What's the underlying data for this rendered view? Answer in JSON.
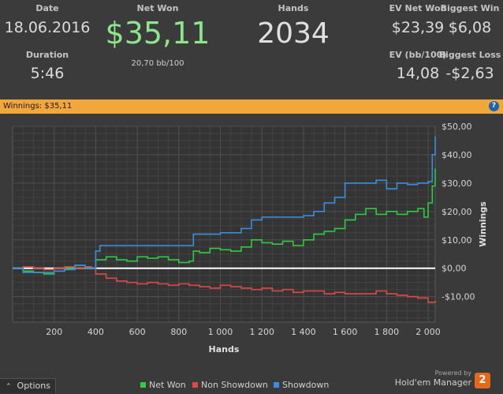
{
  "stats": {
    "date_label": "Date",
    "date_value": "18.06.2016",
    "duration_label": "Duration",
    "duration_value": "5:46",
    "net_won_label": "Net Won",
    "net_won_value": "$35,11",
    "bb100": "20,70 bb/100",
    "hands_label": "Hands",
    "hands_value": "2034",
    "ev_net_won_label": "EV Net Won",
    "ev_net_won_value": "$23,39",
    "biggest_win_label": "Biggest Win",
    "biggest_win_value": "$6,08",
    "ev_bb100_label": "EV (bb/100)",
    "ev_bb100_value": "14,08",
    "biggest_loss_label": "Biggest Loss",
    "biggest_loss_value": "-$2,63"
  },
  "titlebar": {
    "text": "Winnings: $35,11",
    "help_label": "?"
  },
  "bottom": {
    "options_label": "Options",
    "options_icon": "chevron-up-icon",
    "powered_by": "Powered by",
    "brand": "Hold'em Manager",
    "brand_badge": "2"
  },
  "colors": {
    "net_won": "#2ecc40",
    "non_showdown": "#e04848",
    "showdown": "#3a8ee0",
    "net_won_text": "#8ee68a",
    "zero_line": "#ffffff",
    "accent_bar": "#f2a73d"
  },
  "chart_data": {
    "type": "line",
    "xlabel": "Hands",
    "ylabel": "Winnings",
    "xlim": [
      0,
      2034
    ],
    "ylim": [
      -19,
      50
    ],
    "x_ticks": [
      200,
      400,
      600,
      800,
      1000,
      1200,
      1400,
      1600,
      1800,
      2000
    ],
    "x_tick_labels": [
      "200",
      "400",
      "600",
      "800",
      "1 000",
      "1 200",
      "1 400",
      "1 600",
      "1 800",
      "2 000"
    ],
    "y_ticks": [
      -10,
      0,
      10,
      20,
      30,
      40,
      50
    ],
    "y_tick_labels": [
      "-$10,00",
      "$0,00",
      "$10,00",
      "$20,00",
      "$30,00",
      "$40,00",
      "$50,00"
    ],
    "grid": true,
    "legend_position": "bottom-center",
    "series": [
      {
        "name": "Net Won",
        "color": "#2ecc40",
        "x": [
          0,
          50,
          100,
          150,
          200,
          250,
          300,
          350,
          380,
          400,
          450,
          500,
          550,
          600,
          650,
          700,
          750,
          800,
          850,
          870,
          900,
          950,
          1000,
          1050,
          1100,
          1150,
          1200,
          1250,
          1300,
          1350,
          1400,
          1450,
          1500,
          1550,
          1600,
          1650,
          1700,
          1750,
          1800,
          1850,
          1900,
          1950,
          1980,
          2000,
          2020,
          2034
        ],
        "values": [
          0,
          -1,
          -1.5,
          -2,
          -1,
          0,
          1,
          0.5,
          0,
          3,
          4,
          3,
          2.5,
          4,
          3.5,
          4,
          3,
          2,
          2.5,
          6,
          5.5,
          7,
          6.5,
          6,
          7.5,
          10,
          9,
          8.5,
          9.5,
          8,
          10,
          12,
          13,
          14,
          17,
          19,
          21,
          19,
          20,
          19,
          20,
          21,
          18,
          23,
          29,
          35.11
        ]
      },
      {
        "name": "Non Showdown",
        "color": "#e04848",
        "x": [
          0,
          50,
          100,
          150,
          200,
          250,
          300,
          350,
          380,
          400,
          450,
          500,
          550,
          600,
          650,
          700,
          750,
          800,
          850,
          900,
          950,
          1000,
          1050,
          1100,
          1150,
          1200,
          1250,
          1300,
          1350,
          1400,
          1450,
          1500,
          1550,
          1600,
          1650,
          1700,
          1750,
          1800,
          1850,
          1900,
          1950,
          2000,
          2034
        ],
        "values": [
          0,
          0.5,
          0,
          -0.5,
          0,
          0.5,
          0,
          0.5,
          0,
          -2,
          -3.5,
          -4.5,
          -5,
          -5.5,
          -5,
          -5.5,
          -6,
          -5.5,
          -6,
          -6.5,
          -7,
          -6,
          -6.5,
          -7,
          -7.5,
          -7,
          -8,
          -7.5,
          -8.5,
          -8,
          -8,
          -9,
          -8.5,
          -9,
          -9,
          -9,
          -8,
          -9,
          -9.5,
          -10,
          -10.5,
          -12,
          -11.5
        ]
      },
      {
        "name": "Showdown",
        "color": "#3a8ee0",
        "x": [
          0,
          50,
          100,
          150,
          200,
          250,
          300,
          350,
          380,
          400,
          420,
          500,
          600,
          700,
          800,
          850,
          870,
          900,
          1000,
          1100,
          1150,
          1200,
          1300,
          1400,
          1450,
          1500,
          1550,
          1600,
          1700,
          1750,
          1800,
          1850,
          1900,
          1950,
          2000,
          2020,
          2034
        ],
        "values": [
          0,
          -1.5,
          -1.5,
          -1.5,
          -1,
          -0.5,
          1,
          0,
          0,
          6,
          8,
          8,
          8,
          8,
          8,
          8,
          12,
          12,
          12.5,
          14,
          17,
          18,
          18,
          18.5,
          20,
          23,
          25,
          30,
          30,
          31,
          28,
          30,
          29.5,
          30,
          30.5,
          40,
          46.5
        ]
      }
    ]
  }
}
